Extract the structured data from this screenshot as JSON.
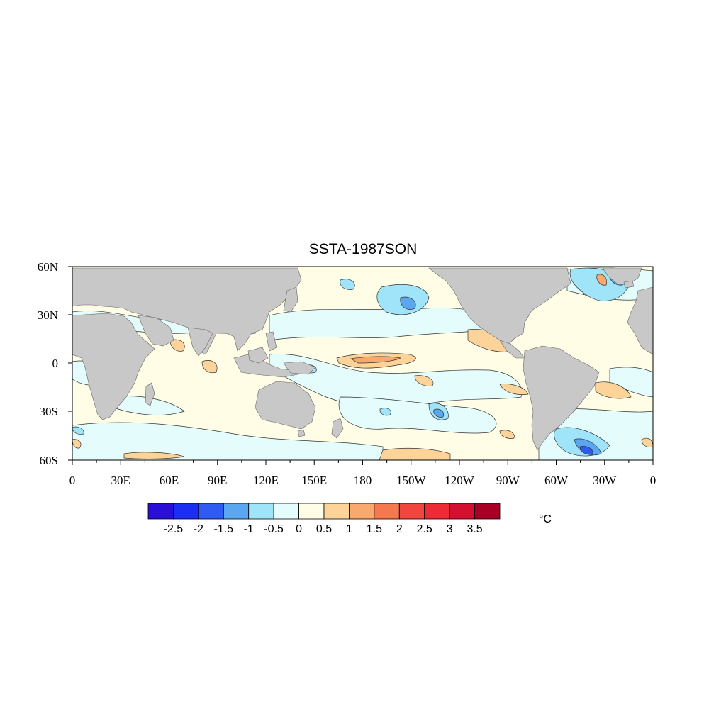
{
  "title": "SSTA-1987SON",
  "map": {
    "lat_labels": [
      "60N",
      "30N",
      "0",
      "30S",
      "60S"
    ],
    "lon_labels": [
      "0",
      "30E",
      "60E",
      "90E",
      "120E",
      "150E",
      "180",
      "150W",
      "120W",
      "90W",
      "60W",
      "30W",
      "0"
    ],
    "land_color": "#c8c8c8",
    "contour_color": "#333333",
    "lat_range": [
      -60,
      60
    ],
    "lon_range": [
      0,
      360
    ]
  },
  "colorbar": {
    "colors": [
      "#2a0fd6",
      "#1c2ef2",
      "#2f5bf2",
      "#5aa6f0",
      "#9fe4f8",
      "#e4fcfc",
      "#fffde6",
      "#fcd49a",
      "#f9a86e",
      "#f6784f",
      "#f0463f",
      "#ee2a36",
      "#d41030",
      "#a80024"
    ],
    "labels": [
      "-2.5",
      "-2",
      "-1.5",
      "-1",
      "-0.5",
      "0",
      "0.5",
      "1",
      "1.5",
      "2",
      "2.5",
      "3",
      "3.5"
    ],
    "unit": "°C"
  }
}
